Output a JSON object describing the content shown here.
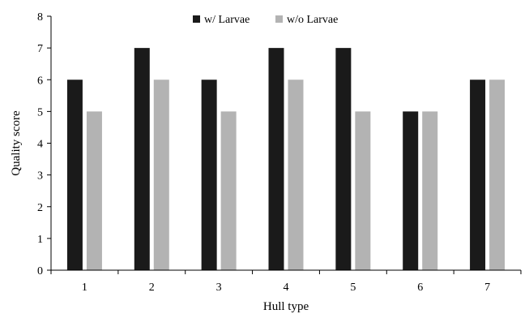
{
  "chart_data": {
    "type": "bar",
    "xlabel": "Hull type",
    "ylabel": "Quality score",
    "categories": [
      "1",
      "2",
      "3",
      "4",
      "5",
      "6",
      "7"
    ],
    "series": [
      {
        "name": "w/ Larvae",
        "values": [
          6,
          7,
          6,
          7,
          7,
          5,
          6
        ],
        "color": "#1a1a1a"
      },
      {
        "name": "w/o Larvae",
        "values": [
          5,
          6,
          5,
          6,
          5,
          5,
          6
        ],
        "color": "#b3b3b3"
      }
    ],
    "ylim": [
      0,
      8
    ],
    "yticks": [
      "0",
      "1",
      "2",
      "3",
      "4",
      "5",
      "6",
      "7",
      "8"
    ],
    "grid": false,
    "legend_position": "top-center"
  }
}
